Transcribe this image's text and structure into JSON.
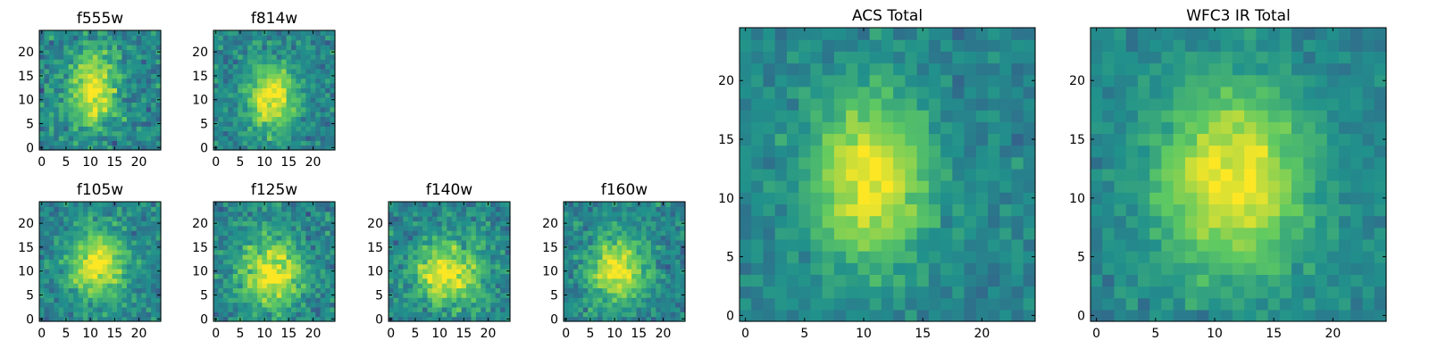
{
  "figure": {
    "colormap": "viridis",
    "colormap_stops": [
      "#440154",
      "#3b528b",
      "#21918c",
      "#5ec962",
      "#fde725"
    ],
    "background": "#ffffff"
  },
  "chart_data": [
    {
      "type": "heatmap",
      "title": "f555w",
      "grid_size": 25,
      "xticks": [
        0,
        5,
        10,
        15,
        20
      ],
      "yticks": [
        0,
        5,
        10,
        15,
        20
      ],
      "xlim": [
        0,
        25
      ],
      "ylim": [
        0,
        25
      ],
      "center": [
        11,
        13
      ],
      "spread": [
        3.5,
        5.5
      ],
      "noise": 0.55,
      "seed": 11
    },
    {
      "type": "heatmap",
      "title": "f814w",
      "grid_size": 25,
      "xticks": [
        0,
        5,
        10,
        15,
        20
      ],
      "yticks": [
        0,
        5,
        10,
        15,
        20
      ],
      "xlim": [
        0,
        25
      ],
      "ylim": [
        0,
        25
      ],
      "center": [
        12,
        11
      ],
      "spread": [
        3.5,
        5
      ],
      "noise": 0.45,
      "seed": 23
    },
    {
      "type": "heatmap",
      "title": "f105w",
      "grid_size": 25,
      "xticks": [
        0,
        5,
        10,
        15,
        20
      ],
      "yticks": [
        0,
        5,
        10,
        15,
        20
      ],
      "xlim": [
        0,
        25
      ],
      "ylim": [
        0,
        25
      ],
      "center": [
        12,
        12
      ],
      "spread": [
        4,
        5
      ],
      "noise": 0.45,
      "seed": 37
    },
    {
      "type": "heatmap",
      "title": "f125w",
      "grid_size": 25,
      "xticks": [
        0,
        5,
        10,
        15,
        20
      ],
      "yticks": [
        0,
        5,
        10,
        15,
        20
      ],
      "xlim": [
        0,
        25
      ],
      "ylim": [
        0,
        25
      ],
      "center": [
        12,
        10
      ],
      "spread": [
        4.5,
        5
      ],
      "noise": 0.5,
      "seed": 41
    },
    {
      "type": "heatmap",
      "title": "f140w",
      "grid_size": 25,
      "xticks": [
        0,
        5,
        10,
        15,
        20
      ],
      "yticks": [
        0,
        5,
        10,
        15,
        20
      ],
      "xlim": [
        0,
        25
      ],
      "ylim": [
        0,
        25
      ],
      "center": [
        12,
        10
      ],
      "spread": [
        5,
        4.5
      ],
      "noise": 0.5,
      "seed": 53
    },
    {
      "type": "heatmap",
      "title": "f160w",
      "grid_size": 25,
      "xticks": [
        0,
        5,
        10,
        15,
        20
      ],
      "yticks": [
        0,
        5,
        10,
        15,
        20
      ],
      "xlim": [
        0,
        25
      ],
      "ylim": [
        0,
        25
      ],
      "center": [
        11,
        11
      ],
      "spread": [
        4,
        5
      ],
      "noise": 0.45,
      "seed": 67
    },
    {
      "type": "heatmap",
      "title": "ACS Total",
      "grid_size": 25,
      "xticks": [
        0,
        5,
        10,
        15,
        20
      ],
      "yticks": [
        0,
        5,
        10,
        15,
        20
      ],
      "xlim": [
        0,
        25
      ],
      "ylim": [
        0,
        25
      ],
      "center": [
        11,
        12
      ],
      "spread": [
        3.5,
        5
      ],
      "noise": 0.32,
      "seed": 79
    },
    {
      "type": "heatmap",
      "title": "WFC3 IR Total",
      "grid_size": 25,
      "xticks": [
        0,
        5,
        10,
        15,
        20
      ],
      "yticks": [
        0,
        5,
        10,
        15,
        20
      ],
      "xlim": [
        0,
        25
      ],
      "ylim": [
        0,
        25
      ],
      "center": [
        12,
        12
      ],
      "spread": [
        4.5,
        5.5
      ],
      "noise": 0.28,
      "seed": 97
    }
  ]
}
